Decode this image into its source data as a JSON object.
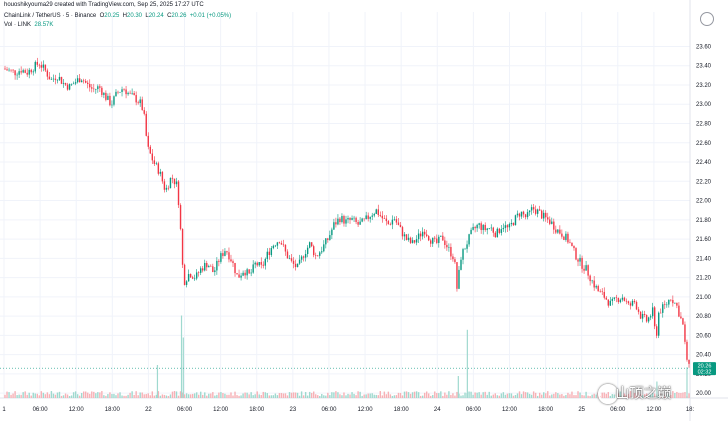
{
  "header": {
    "credit": "houoshikyouma29 created with TradingView.com, Sep 25, 2025 17:27 UTC",
    "symbol": "ChainLink / TetherUS · 5 · Binance",
    "ohlc": {
      "o_label": "O",
      "o": "20.25",
      "h_label": "H",
      "h": "20.30",
      "l_label": "L",
      "l": "20.24",
      "c_label": "C",
      "c": "20.26",
      "change": "+0.01 (+0.05%)"
    },
    "volume_label": "Vol · LINK",
    "volume_value": "28.57K"
  },
  "watermark": "山顶之巅",
  "price_badge": {
    "price": "20.26",
    "timer": "02:32",
    "color": "#089981"
  },
  "colors": {
    "up": "#089981",
    "down": "#f23645",
    "grid": "#f0f3fa",
    "axis_text": "#131722"
  },
  "chart_data": {
    "type": "candlestick",
    "title": "",
    "xlabel": "",
    "ylabel": "",
    "ylim": [
      19.95,
      23.75
    ],
    "y_ticks": [
      "23.60",
      "23.40",
      "23.20",
      "23.00",
      "22.80",
      "22.60",
      "22.40",
      "22.20",
      "22.00",
      "21.80",
      "21.60",
      "21.40",
      "21.20",
      "21.00",
      "20.80",
      "20.60",
      "20.40",
      "20.20",
      "20.00"
    ],
    "x_ticks": [
      "1",
      "06:00",
      "12:00",
      "18:00",
      "22",
      "06:00",
      "12:00",
      "18:00",
      "23",
      "06:00",
      "12:00",
      "18:00",
      "24",
      "06:00",
      "12:00",
      "18:00",
      "25",
      "06:00",
      "12:00",
      "18:"
    ],
    "x_tick_hours": [
      0,
      6,
      12,
      18,
      24,
      30,
      36,
      42,
      48,
      54,
      60,
      66,
      72,
      78,
      84,
      90,
      96,
      102,
      108,
      114
    ],
    "x_range_hours": [
      0,
      114
    ],
    "grid": true,
    "price_path": [
      [
        0,
        23.37
      ],
      [
        1,
        23.35
      ],
      [
        2,
        23.33
      ],
      [
        3,
        23.36
      ],
      [
        4,
        23.33
      ],
      [
        5,
        23.38
      ],
      [
        6,
        23.43
      ],
      [
        7,
        23.35
      ],
      [
        8,
        23.25
      ],
      [
        9,
        23.3
      ],
      [
        10,
        23.22
      ],
      [
        11,
        23.18
      ],
      [
        12,
        23.23
      ],
      [
        13,
        23.28
      ],
      [
        14,
        23.2
      ],
      [
        15,
        23.15
      ],
      [
        16,
        23.18
      ],
      [
        17,
        23.08
      ],
      [
        18,
        23.0
      ],
      [
        19,
        23.12
      ],
      [
        20,
        23.17
      ],
      [
        21,
        23.1
      ],
      [
        22,
        23.06
      ],
      [
        23,
        23.0
      ],
      [
        23.5,
        22.85
      ],
      [
        24,
        22.55
      ],
      [
        25,
        22.4
      ],
      [
        26,
        22.3
      ],
      [
        27,
        22.1
      ],
      [
        28,
        22.25
      ],
      [
        29,
        22.15
      ],
      [
        29.5,
        21.7
      ],
      [
        30,
        21.15
      ],
      [
        31,
        21.25
      ],
      [
        32,
        21.2
      ],
      [
        33,
        21.3
      ],
      [
        34,
        21.35
      ],
      [
        35,
        21.25
      ],
      [
        36,
        21.4
      ],
      [
        37,
        21.5
      ],
      [
        38,
        21.38
      ],
      [
        39,
        21.2
      ],
      [
        40,
        21.28
      ],
      [
        41,
        21.22
      ],
      [
        42,
        21.35
      ],
      [
        43,
        21.3
      ],
      [
        44,
        21.45
      ],
      [
        45,
        21.55
      ],
      [
        46,
        21.6
      ],
      [
        47,
        21.45
      ],
      [
        48,
        21.35
      ],
      [
        49,
        21.3
      ],
      [
        50,
        21.45
      ],
      [
        51,
        21.55
      ],
      [
        52,
        21.42
      ],
      [
        53,
        21.5
      ],
      [
        54,
        21.6
      ],
      [
        55,
        21.75
      ],
      [
        56,
        21.82
      ],
      [
        57,
        21.78
      ],
      [
        58,
        21.8
      ],
      [
        59,
        21.75
      ],
      [
        60,
        21.78
      ],
      [
        61,
        21.85
      ],
      [
        62,
        21.9
      ],
      [
        63,
        21.82
      ],
      [
        64,
        21.75
      ],
      [
        65,
        21.82
      ],
      [
        66,
        21.7
      ],
      [
        67,
        21.6
      ],
      [
        68,
        21.55
      ],
      [
        69,
        21.62
      ],
      [
        70,
        21.7
      ],
      [
        71,
        21.6
      ],
      [
        72,
        21.55
      ],
      [
        73,
        21.62
      ],
      [
        74,
        21.5
      ],
      [
        75,
        21.4
      ],
      [
        75.5,
        21.05
      ],
      [
        76,
        21.4
      ],
      [
        77,
        21.55
      ],
      [
        78,
        21.68
      ],
      [
        79,
        21.75
      ],
      [
        80,
        21.7
      ],
      [
        81,
        21.72
      ],
      [
        82,
        21.65
      ],
      [
        83,
        21.75
      ],
      [
        84,
        21.7
      ],
      [
        85,
        21.8
      ],
      [
        86,
        21.88
      ],
      [
        87,
        21.82
      ],
      [
        88,
        21.92
      ],
      [
        89,
        21.88
      ],
      [
        90,
        21.82
      ],
      [
        91,
        21.78
      ],
      [
        92,
        21.7
      ],
      [
        93,
        21.65
      ],
      [
        94,
        21.58
      ],
      [
        95,
        21.45
      ],
      [
        96,
        21.35
      ],
      [
        97,
        21.28
      ],
      [
        98,
        21.15
      ],
      [
        99,
        21.05
      ],
      [
        100,
        21.0
      ],
      [
        101,
        20.92
      ],
      [
        102,
        20.98
      ],
      [
        103,
        21.0
      ],
      [
        104,
        20.9
      ],
      [
        105,
        20.95
      ],
      [
        106,
        20.8
      ],
      [
        107,
        20.75
      ],
      [
        108,
        20.85
      ],
      [
        108.5,
        20.55
      ],
      [
        109,
        20.85
      ],
      [
        110,
        20.9
      ],
      [
        111,
        21.0
      ],
      [
        112,
        20.9
      ],
      [
        113,
        20.7
      ],
      [
        113.5,
        20.4
      ],
      [
        114,
        20.26
      ]
    ],
    "volume_spikes": [
      [
        29.5,
        0.75
      ],
      [
        29.8,
        0.55
      ],
      [
        25.5,
        0.3
      ],
      [
        77.0,
        0.62
      ],
      [
        75.5,
        0.2
      ],
      [
        113.5,
        0.28
      ],
      [
        108.5,
        0.15
      ]
    ]
  }
}
